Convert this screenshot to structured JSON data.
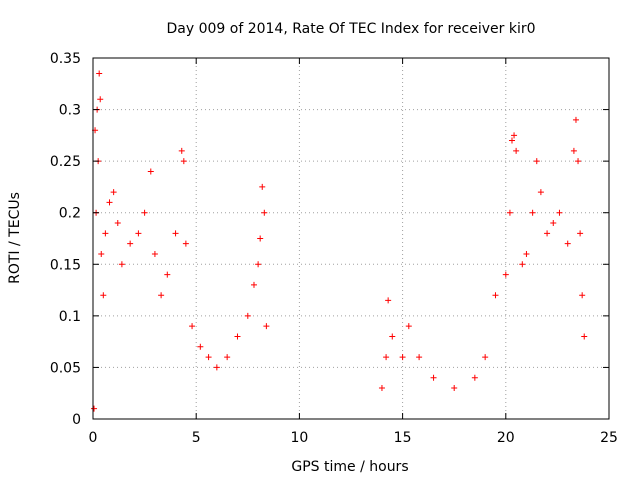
{
  "chart_data": {
    "type": "scatter",
    "title": "Day 009 of 2014, Rate Of TEC Index for receiver kir0",
    "xlabel": "GPS time / hours",
    "ylabel": "ROTI / TECUs",
    "xlim": [
      0,
      25
    ],
    "ylim": [
      0,
      0.35
    ],
    "x_ticks": [
      0,
      5,
      10,
      15,
      20,
      25
    ],
    "x_tick_labels": [
      "0",
      "5",
      "10",
      "15",
      "20",
      "25"
    ],
    "y_ticks": [
      0,
      0.05,
      0.1,
      0.15,
      0.2,
      0.25,
      0.3,
      0.35
    ],
    "y_tick_labels": [
      "0",
      "0.05",
      "0.1",
      "0.15",
      "0.2",
      "0.25",
      "0.3",
      "0.35"
    ],
    "grid": true,
    "marker": "+",
    "color": "#ff0000",
    "series": [
      {
        "name": "ROTI",
        "points": [
          [
            0.05,
            0.01
          ],
          [
            0.1,
            0.28
          ],
          [
            0.2,
            0.3
          ],
          [
            0.3,
            0.335
          ],
          [
            0.35,
            0.31
          ],
          [
            0.15,
            0.2
          ],
          [
            0.25,
            0.25
          ],
          [
            0.4,
            0.16
          ],
          [
            0.5,
            0.12
          ],
          [
            0.6,
            0.18
          ],
          [
            0.8,
            0.21
          ],
          [
            1.0,
            0.22
          ],
          [
            1.2,
            0.19
          ],
          [
            1.4,
            0.15
          ],
          [
            1.8,
            0.17
          ],
          [
            2.2,
            0.18
          ],
          [
            2.5,
            0.2
          ],
          [
            2.8,
            0.24
          ],
          [
            3.0,
            0.16
          ],
          [
            3.3,
            0.12
          ],
          [
            3.6,
            0.14
          ],
          [
            4.0,
            0.18
          ],
          [
            4.3,
            0.26
          ],
          [
            4.4,
            0.25
          ],
          [
            4.5,
            0.17
          ],
          [
            4.8,
            0.09
          ],
          [
            5.2,
            0.07
          ],
          [
            5.6,
            0.06
          ],
          [
            6.0,
            0.05
          ],
          [
            6.5,
            0.06
          ],
          [
            7.0,
            0.08
          ],
          [
            7.5,
            0.1
          ],
          [
            7.8,
            0.13
          ],
          [
            8.0,
            0.15
          ],
          [
            8.2,
            0.225
          ],
          [
            8.3,
            0.2
          ],
          [
            8.1,
            0.175
          ],
          [
            8.4,
            0.09
          ],
          [
            14.0,
            0.03
          ],
          [
            14.2,
            0.06
          ],
          [
            14.3,
            0.115
          ],
          [
            14.5,
            0.08
          ],
          [
            15.0,
            0.06
          ],
          [
            15.3,
            0.09
          ],
          [
            15.8,
            0.06
          ],
          [
            16.5,
            0.04
          ],
          [
            17.5,
            0.03
          ],
          [
            18.5,
            0.04
          ],
          [
            19.0,
            0.06
          ],
          [
            19.5,
            0.12
          ],
          [
            20.0,
            0.14
          ],
          [
            20.2,
            0.2
          ],
          [
            20.3,
            0.27
          ],
          [
            20.4,
            0.275
          ],
          [
            20.5,
            0.26
          ],
          [
            20.8,
            0.15
          ],
          [
            21.0,
            0.16
          ],
          [
            21.3,
            0.2
          ],
          [
            21.5,
            0.25
          ],
          [
            21.7,
            0.22
          ],
          [
            22.0,
            0.18
          ],
          [
            22.3,
            0.19
          ],
          [
            22.6,
            0.2
          ],
          [
            23.0,
            0.17
          ],
          [
            23.3,
            0.26
          ],
          [
            23.4,
            0.29
          ],
          [
            23.5,
            0.25
          ],
          [
            23.6,
            0.18
          ],
          [
            23.7,
            0.12
          ],
          [
            23.8,
            0.08
          ]
        ]
      }
    ]
  }
}
